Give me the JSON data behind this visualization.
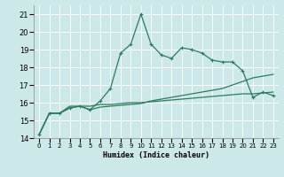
{
  "xlabel": "Humidex (Indice chaleur)",
  "ylabel": "",
  "bg_color": "#cce8e8",
  "grid_color": "#ffffff",
  "line_color": "#2e7b5e",
  "xlim": [
    -0.5,
    23.5
  ],
  "ylim": [
    14,
    21.5
  ],
  "yticks": [
    14,
    15,
    16,
    17,
    18,
    19,
    20,
    21
  ],
  "xticks": [
    0,
    1,
    2,
    3,
    4,
    5,
    6,
    7,
    8,
    9,
    10,
    11,
    12,
    13,
    14,
    15,
    16,
    17,
    18,
    19,
    20,
    21,
    22,
    23
  ],
  "series": [
    [
      14.2,
      15.4,
      15.4,
      15.7,
      15.8,
      15.6,
      16.1,
      16.8,
      18.8,
      19.3,
      21.0,
      19.3,
      18.7,
      18.5,
      19.1,
      19.0,
      18.8,
      18.4,
      18.3,
      18.3,
      17.8,
      16.3,
      16.6,
      16.4
    ],
    [
      14.2,
      15.4,
      15.4,
      15.8,
      15.8,
      15.8,
      15.9,
      15.9,
      15.95,
      16.0,
      16.0,
      16.05,
      16.1,
      16.15,
      16.2,
      16.25,
      16.3,
      16.35,
      16.4,
      16.45,
      16.5,
      16.5,
      16.55,
      16.6
    ],
    [
      14.2,
      15.4,
      15.4,
      15.7,
      15.8,
      15.6,
      15.75,
      15.8,
      15.85,
      15.9,
      15.95,
      16.1,
      16.2,
      16.3,
      16.4,
      16.5,
      16.6,
      16.7,
      16.8,
      17.0,
      17.2,
      17.4,
      17.5,
      17.6
    ]
  ]
}
